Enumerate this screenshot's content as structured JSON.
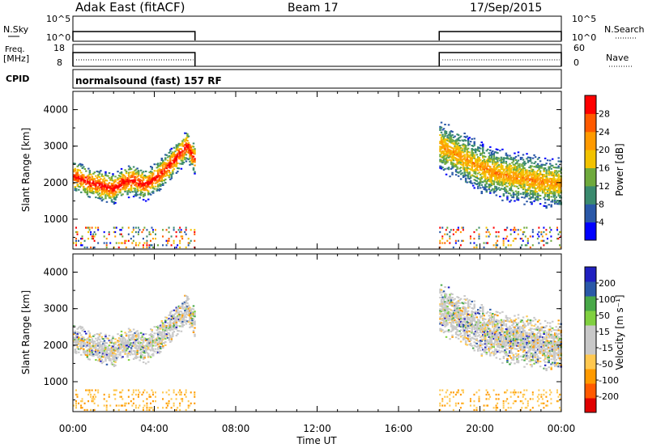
{
  "header": {
    "station": "Adak East (fitACF)",
    "beam": "Beam 17",
    "date": "17/Sep/2015"
  },
  "param_panels": {
    "nsky": {
      "left_label": "N.Sky",
      "ticks": [
        "10^5",
        "10^0"
      ],
      "right_label": "N.Search",
      "right_ticks": [
        "10^5",
        "10^0"
      ]
    },
    "freq": {
      "left_label_1": "Freq.",
      "left_label_2": "[MHz]",
      "ticks": [
        "18",
        "8"
      ],
      "right_label": "Nave",
      "right_ticks": [
        "60",
        "0"
      ]
    },
    "cpid": {
      "left_label": "CPID",
      "text": "normalsound (fast) 157 RF"
    }
  },
  "x_axis": {
    "label": "Time UT",
    "ticks": [
      "00:00",
      "04:00",
      "08:00",
      "12:00",
      "16:00",
      "20:00",
      "00:00"
    ]
  },
  "colors": {
    "power_scale": [
      "#0000ff",
      "#2a58a8",
      "#3a8a6e",
      "#6faa3c",
      "#f2c200",
      "#ff9a00",
      "#ff5a00",
      "#ff0000"
    ],
    "velocity_scale": [
      "#e00000",
      "#ff5a00",
      "#ff9a00",
      "#ffc850",
      "#c8c8c8",
      "#c8c8c8",
      "#80d040",
      "#48a848",
      "#2a58a8",
      "#2020c0"
    ]
  },
  "chart_data": [
    {
      "type": "heatmap",
      "title": "Power",
      "ylabel": "Slant Range [km]",
      "xlabel": "",
      "x_range_hours": [
        0,
        24
      ],
      "ylim": [
        180,
        4500
      ],
      "yticks": [
        1000,
        2000,
        3000,
        4000
      ],
      "colorbar": {
        "label": "Power [dB]",
        "ticks": [
          "4",
          "8",
          "12",
          "16",
          "20",
          "24",
          "28"
        ],
        "range": [
          0,
          32
        ]
      },
      "data_windows_hours": [
        [
          0,
          6
        ],
        [
          18,
          24
        ]
      ],
      "echo_regions": [
        {
          "start_hour": 0,
          "end_hour": 6,
          "center_km": [
            2150,
            2050,
            1950,
            1800,
            2000,
            2050,
            1900,
            2150,
            2600,
            3000,
            2600
          ],
          "hours": [
            0,
            0.5,
            1,
            2,
            2.5,
            3,
            3.5,
            4.2,
            5,
            5.6,
            6
          ]
        },
        {
          "start_hour": 18,
          "end_hour": 24,
          "center_km": [
            3000,
            2700,
            2400,
            2200,
            2100,
            2000,
            1950
          ],
          "hours": [
            18,
            19,
            20,
            21,
            22,
            23,
            24
          ]
        }
      ]
    },
    {
      "type": "heatmap",
      "title": "Velocity",
      "ylabel": "Slant Range [km]",
      "xlabel": "Time UT",
      "x_range_hours": [
        0,
        24
      ],
      "ylim": [
        180,
        4500
      ],
      "yticks": [
        1000,
        2000,
        3000,
        4000
      ],
      "colorbar": {
        "label": "Velocity [m s⁻¹]",
        "ticks": [
          "-200",
          "-100",
          "-50",
          "-15",
          "15",
          "50",
          "100",
          "200"
        ],
        "range": [
          -250,
          250
        ]
      },
      "data_windows_hours": [
        [
          0,
          6
        ],
        [
          18,
          24
        ]
      ]
    }
  ]
}
